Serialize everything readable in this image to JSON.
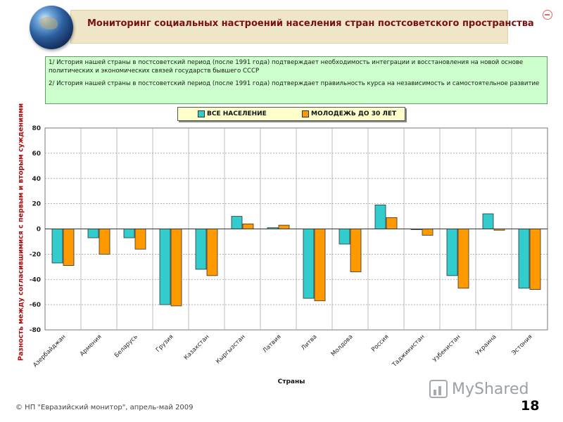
{
  "header": {
    "title": "Мониторинг социальных настроений населения стран постсоветского пространства"
  },
  "notes": [
    "1/ История нашей страны в постсоветский период (после 1991 года) подтверждает необходимость интеграции и восстановления на новой основе политических и экономических связей государств бывшего СССР",
    "2/ История нашей страны в постсоветский период (после 1991 года) подтверждает правильность курса на независимость и самостоятельное развитие"
  ],
  "chart_data": {
    "type": "bar",
    "title": "",
    "xlabel": "Страны",
    "ylabel": "Разность между согласившимися с первым и вторым суждениями",
    "ylim": [
      -80,
      80
    ],
    "yticks": [
      -80,
      -60,
      -40,
      -20,
      0,
      20,
      40,
      60,
      80
    ],
    "grid": true,
    "legend_position": "top",
    "categories": [
      "Азербайджан",
      "Армения",
      "Беларусь",
      "Грузия",
      "Казахстан",
      "Кыргызстан",
      "Латвия",
      "Литва",
      "Молдова",
      "Россия",
      "Таджикистан",
      "Узбекистан",
      "Украина",
      "Эстония"
    ],
    "series": [
      {
        "name": "ВСЕ НАСЕЛЕНИЕ",
        "color": "#33cccc",
        "values": [
          -27,
          -7,
          -7,
          -60,
          -32,
          10,
          1,
          -55,
          -12,
          19,
          0,
          -37,
          12,
          -47
        ]
      },
      {
        "name": "МОЛОДЕЖЬ ДО 30 ЛЕТ",
        "color": "#ff9900",
        "values": [
          -29,
          -20,
          -16,
          -61,
          -37,
          4,
          3,
          -57,
          -34,
          9,
          -5,
          -47,
          -1,
          -48
        ]
      }
    ]
  },
  "footer": {
    "source": "© НП \"Евразийский монитор\", апрель-май 2009",
    "page_number": "18",
    "watermark": "MyShared"
  }
}
